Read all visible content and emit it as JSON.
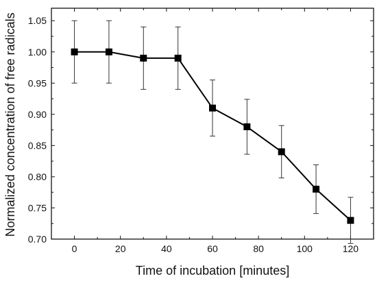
{
  "chart_data": {
    "type": "line",
    "title": "",
    "xlabel": "Time of incubation [minutes]",
    "ylabel": "Normalized concentration of free radicals",
    "xlim": [
      -10,
      130
    ],
    "ylim": [
      0.7,
      1.07
    ],
    "xticks": [
      0,
      20,
      40,
      60,
      80,
      100,
      120
    ],
    "xtick_labels": [
      "0",
      "20",
      "40",
      "60",
      "80",
      "100",
      "120"
    ],
    "yticks": [
      0.7,
      0.75,
      0.8,
      0.85,
      0.9,
      0.95,
      1.0,
      1.05
    ],
    "ytick_labels": [
      "0.70",
      "0.75",
      "0.80",
      "0.85",
      "0.90",
      "0.95",
      "1.00",
      "1.05"
    ],
    "grid": false,
    "series": [
      {
        "x": [
          0,
          15,
          30,
          45,
          60,
          75,
          90,
          105,
          120
        ],
        "y": [
          1.0,
          1.0,
          0.99,
          0.99,
          0.91,
          0.88,
          0.84,
          0.78,
          0.73
        ],
        "err": [
          0.05,
          0.05,
          0.05,
          0.05,
          0.045,
          0.044,
          0.042,
          0.039,
          0.037
        ],
        "marker": "square",
        "color": "#000000"
      }
    ]
  }
}
